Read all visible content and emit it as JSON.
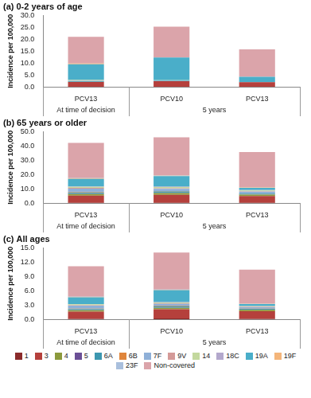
{
  "chart_data": [
    {
      "type": "bar",
      "title": "(a) 0-2 years of age",
      "y_label": "Incidence per 100,000",
      "categories": [
        [
          "At time of decision",
          "PCV13"
        ],
        [
          "5 years",
          "PCV10"
        ],
        [
          "5 years",
          "PCV13"
        ]
      ],
      "stacked": true,
      "grid": false,
      "ylim": [
        0,
        30
      ],
      "yticks": [
        {
          "value": 0,
          "label": "0.0"
        },
        {
          "value": 5,
          "label": "5.0"
        },
        {
          "value": 10,
          "label": "10.0"
        },
        {
          "value": 15,
          "label": "15.0"
        },
        {
          "value": 20,
          "label": "20.0"
        },
        {
          "value": 25,
          "label": "25.0"
        },
        {
          "value": 30,
          "label": "30.0"
        }
      ],
      "series": [
        {
          "name": "1",
          "color": "#8b2b2b",
          "values": [
            0.1,
            0.1,
            0.1
          ]
        },
        {
          "name": "3",
          "color": "#b5403c",
          "values": [
            2.0,
            2.3,
            1.9
          ]
        },
        {
          "name": "4",
          "color": "#8c9a3c",
          "values": [
            0,
            0,
            0
          ]
        },
        {
          "name": "5",
          "color": "#6b4f96",
          "values": [
            0,
            0,
            0
          ]
        },
        {
          "name": "6A",
          "color": "#3d97b0",
          "values": [
            0.2,
            0.2,
            0.1
          ]
        },
        {
          "name": "6B",
          "color": "#e0853a",
          "values": [
            0.1,
            0,
            0
          ]
        },
        {
          "name": "7F",
          "color": "#8fb0d8",
          "values": [
            0.2,
            0.1,
            0
          ]
        },
        {
          "name": "9V",
          "color": "#d49a98",
          "values": [
            0,
            0,
            0
          ]
        },
        {
          "name": "14",
          "color": "#c3d89e",
          "values": [
            0.3,
            0.1,
            0
          ]
        },
        {
          "name": "18C",
          "color": "#b3a8cc",
          "values": [
            0,
            0,
            0
          ]
        },
        {
          "name": "19A",
          "color": "#4aaec9",
          "values": [
            6.6,
            9.5,
            2.1
          ]
        },
        {
          "name": "19F",
          "color": "#f4b57a",
          "values": [
            0.3,
            0,
            0
          ]
        },
        {
          "name": "23F",
          "color": "#a9bfdd",
          "values": [
            0,
            0,
            0
          ]
        },
        {
          "name": "Non-covered",
          "color": "#dba4aa",
          "values": [
            11.2,
            12.9,
            11.5
          ]
        }
      ]
    },
    {
      "type": "bar",
      "title": "(b) 65 years or older",
      "y_label": "Incidence per 100,000",
      "categories": [
        [
          "At time of decision",
          "PCV13"
        ],
        [
          "5 years",
          "PCV10"
        ],
        [
          "5 years",
          "PCV13"
        ]
      ],
      "stacked": true,
      "grid": false,
      "ylim": [
        0,
        50
      ],
      "yticks": [
        {
          "value": 0,
          "label": "0.0"
        },
        {
          "value": 10,
          "label": "10.0"
        },
        {
          "value": 20,
          "label": "20.0"
        },
        {
          "value": 30,
          "label": "30.0"
        },
        {
          "value": 40,
          "label": "40.0"
        },
        {
          "value": 50,
          "label": "50.0"
        }
      ],
      "series": [
        {
          "name": "1",
          "color": "#8b2b2b",
          "values": [
            0.3,
            0.3,
            0.2
          ]
        },
        {
          "name": "3",
          "color": "#b5403c",
          "values": [
            5.0,
            5.5,
            4.8
          ]
        },
        {
          "name": "4",
          "color": "#8c9a3c",
          "values": [
            1.0,
            1.2,
            1.0
          ]
        },
        {
          "name": "5",
          "color": "#6b4f96",
          "values": [
            0.2,
            0.2,
            0.1
          ]
        },
        {
          "name": "6A",
          "color": "#3d97b0",
          "values": [
            0.8,
            1.0,
            0.5
          ]
        },
        {
          "name": "6B",
          "color": "#e0853a",
          "values": [
            0.3,
            0.3,
            0.2
          ]
        },
        {
          "name": "7F",
          "color": "#8fb0d8",
          "values": [
            2.5,
            1.5,
            1.2
          ]
        },
        {
          "name": "9V",
          "color": "#d49a98",
          "values": [
            0.5,
            0.4,
            0.3
          ]
        },
        {
          "name": "14",
          "color": "#c3d89e",
          "values": [
            0.8,
            0.8,
            0.6
          ]
        },
        {
          "name": "18C",
          "color": "#b3a8cc",
          "values": [
            0.3,
            0.3,
            0.2
          ]
        },
        {
          "name": "19A",
          "color": "#4aaec9",
          "values": [
            5.2,
            7.3,
            1.6
          ]
        },
        {
          "name": "19F",
          "color": "#f4b57a",
          "values": [
            0.4,
            0.4,
            0.3
          ]
        },
        {
          "name": "23F",
          "color": "#a9bfdd",
          "values": [
            0.2,
            0.2,
            0.1
          ]
        },
        {
          "name": "Non-covered",
          "color": "#dba4aa",
          "values": [
            24.5,
            26.6,
            24.6
          ]
        }
      ]
    },
    {
      "type": "bar",
      "title": "(c) All ages",
      "y_label": "Incidence per 100,000",
      "categories": [
        [
          "At time of decision",
          "PCV13"
        ],
        [
          "5 years",
          "PCV10"
        ],
        [
          "5 years",
          "PCV13"
        ]
      ],
      "stacked": true,
      "grid": false,
      "legend": "bottom",
      "ylim": [
        0,
        15
      ],
      "yticks": [
        {
          "value": 0,
          "label": "0.0"
        },
        {
          "value": 3,
          "label": "3.0"
        },
        {
          "value": 6,
          "label": "6.0"
        },
        {
          "value": 9,
          "label": "9.0"
        },
        {
          "value": 12,
          "label": "12.0"
        },
        {
          "value": 15,
          "label": "15.0"
        }
      ],
      "series": [
        {
          "name": "1",
          "color": "#8b2b2b",
          "values": [
            0.1,
            0.2,
            0.1
          ]
        },
        {
          "name": "3",
          "color": "#b5403c",
          "values": [
            1.5,
            1.9,
            1.6
          ]
        },
        {
          "name": "4",
          "color": "#8c9a3c",
          "values": [
            0.3,
            0.3,
            0.3
          ]
        },
        {
          "name": "5",
          "color": "#6b4f96",
          "values": [
            0.05,
            0.05,
            0.05
          ]
        },
        {
          "name": "6A",
          "color": "#3d97b0",
          "values": [
            0.2,
            0.3,
            0.15
          ]
        },
        {
          "name": "6B",
          "color": "#e0853a",
          "values": [
            0.1,
            0.1,
            0.05
          ]
        },
        {
          "name": "7F",
          "color": "#8fb0d8",
          "values": [
            0.6,
            0.4,
            0.3
          ]
        },
        {
          "name": "9V",
          "color": "#d49a98",
          "values": [
            0.1,
            0.1,
            0.05
          ]
        },
        {
          "name": "14",
          "color": "#c3d89e",
          "values": [
            0.2,
            0.2,
            0.15
          ]
        },
        {
          "name": "18C",
          "color": "#b3a8cc",
          "values": [
            0.05,
            0.05,
            0.05
          ]
        },
        {
          "name": "19A",
          "color": "#4aaec9",
          "values": [
            1.4,
            2.5,
            0.4
          ]
        },
        {
          "name": "19F",
          "color": "#f4b57a",
          "values": [
            0.1,
            0.1,
            0.05
          ]
        },
        {
          "name": "23F",
          "color": "#a9bfdd",
          "values": [
            0.05,
            0.05,
            0.05
          ]
        },
        {
          "name": "Non-covered",
          "color": "#dba4aa",
          "values": [
            6.35,
            7.75,
            7.1
          ]
        }
      ]
    }
  ]
}
